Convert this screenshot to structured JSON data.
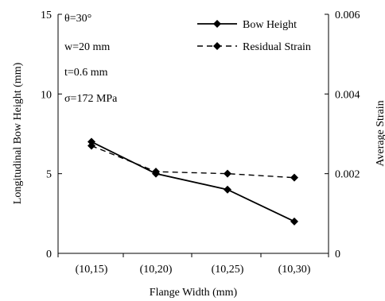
{
  "chart_data": {
    "type": "line",
    "categories": [
      "(10,15)",
      "(10,20)",
      "(10,25)",
      "(10,30)"
    ],
    "xlabel": "Flange Width (mm)",
    "ylabel_left": "Longitudinal Bow Height (mm)",
    "ylabel_right": "Average Strain",
    "ylim_left": [
      0,
      15
    ],
    "yticks_left": [
      "0",
      "5",
      "10",
      "15"
    ],
    "ylim_right": [
      0,
      0.006
    ],
    "yticks_right": [
      "0",
      "0.002",
      "0.004",
      "0.006"
    ],
    "grid": false,
    "legend_position": "top-right",
    "series": [
      {
        "name": "Bow Height",
        "axis": "left",
        "style": "solid",
        "marker": "diamond",
        "color": "#000000",
        "values": [
          7.0,
          5.0,
          4.0,
          2.0
        ]
      },
      {
        "name": "Residual Strain",
        "axis": "right",
        "style": "dashed",
        "marker": "diamond",
        "color": "#000000",
        "values": [
          0.0027,
          0.00205,
          0.002,
          0.0019
        ]
      }
    ],
    "annotations": [
      "θ=30°",
      "w=20 mm",
      "t=0.6 mm",
      "σ=172 MPa"
    ]
  }
}
